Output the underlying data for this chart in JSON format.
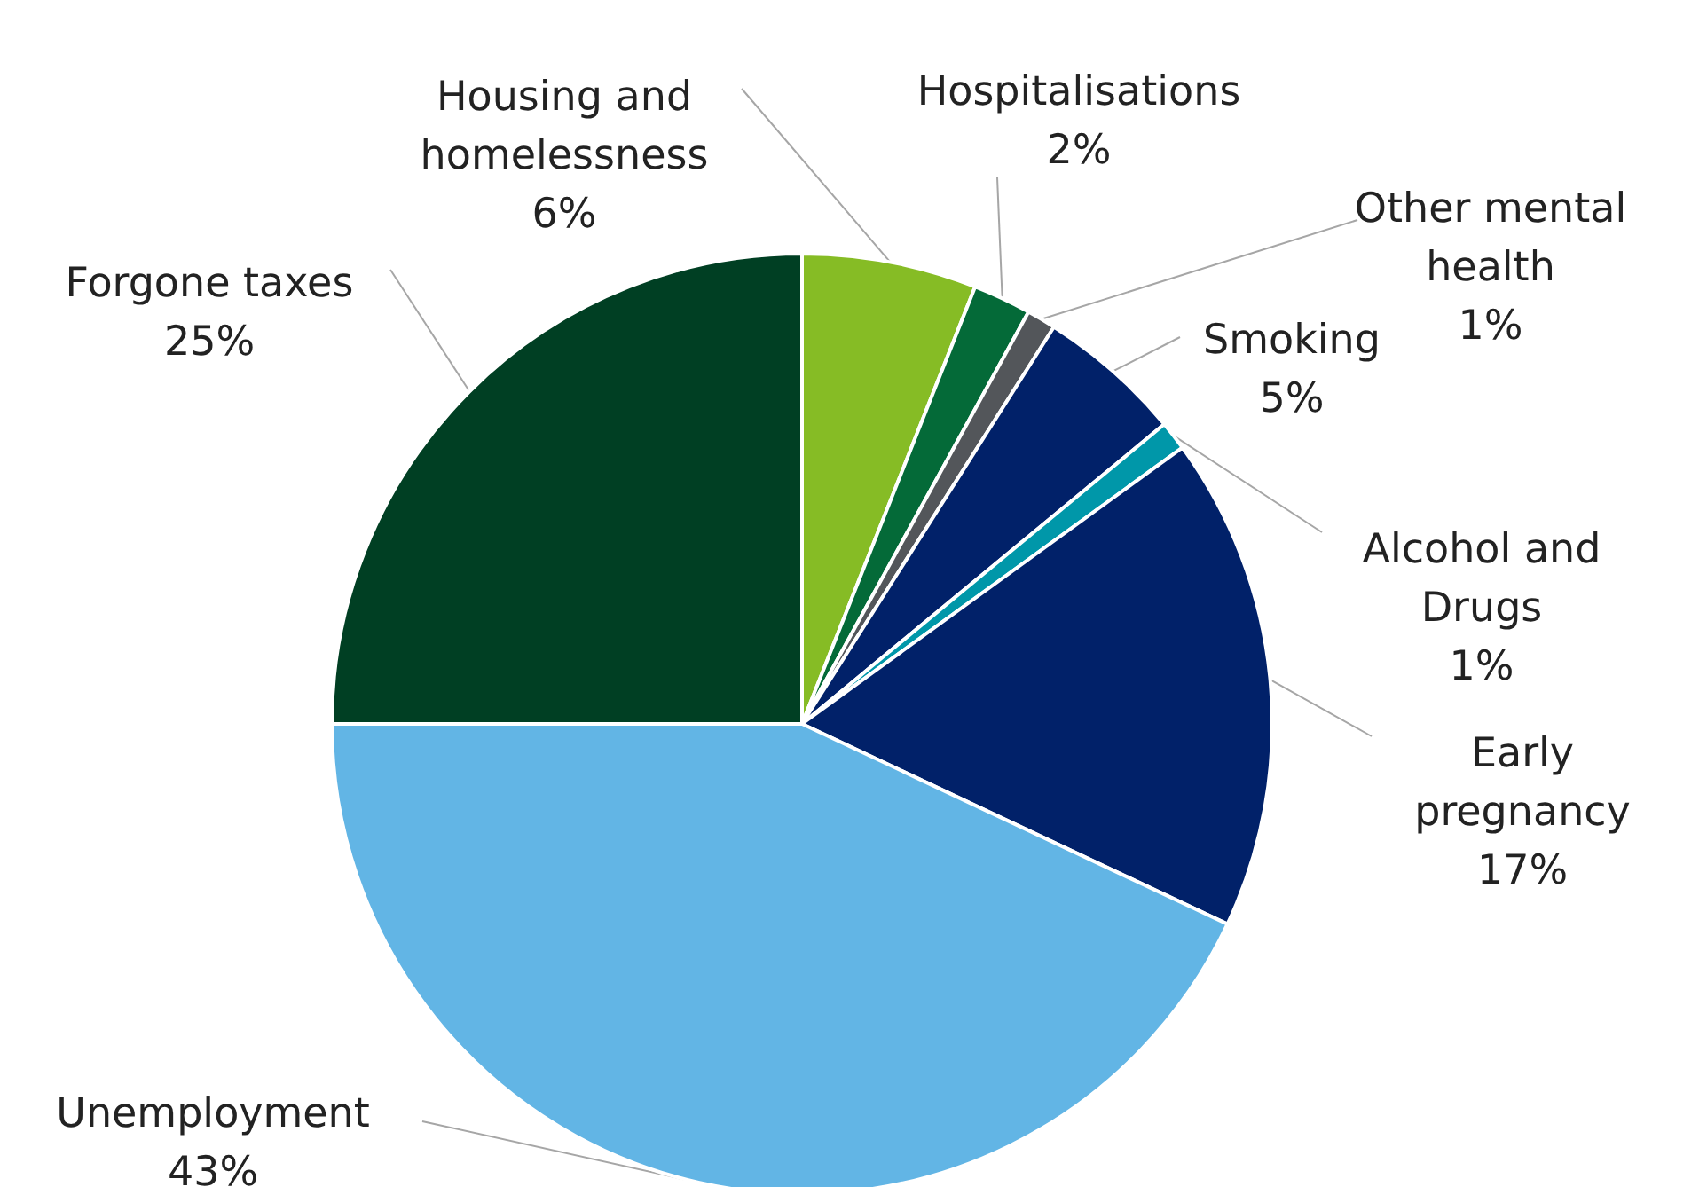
{
  "chart_data": {
    "type": "pie",
    "categories": [
      "Housing and homelessness",
      "Hospitalisations",
      "Other mental health",
      "Smoking",
      "Alcohol and Drugs",
      "Early pregnancy",
      "Unemployment",
      "Forgone taxes"
    ],
    "values": [
      6,
      2,
      1,
      5,
      1,
      17,
      43,
      25
    ],
    "value_labels": [
      "6%",
      "2%",
      "1%",
      "5%",
      "1%",
      "17%",
      "43%",
      "25%"
    ],
    "colors": [
      "#86bc25",
      "#046a38",
      "#53565a",
      "#012169",
      "#0097a9",
      "#012169",
      "#62b5e5",
      "#003f23"
    ]
  }
}
